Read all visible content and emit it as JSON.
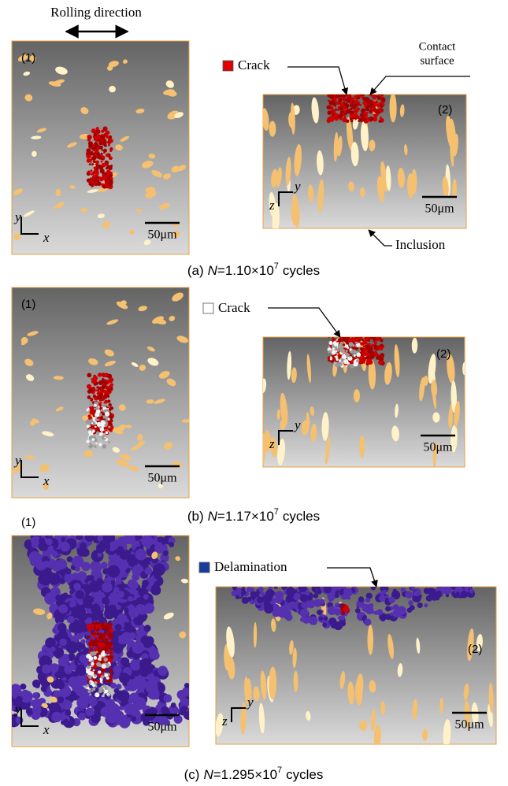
{
  "rolling_direction": "Rolling direction",
  "panels": [
    {
      "caption": {
        "label": "(a)",
        "variable": "N",
        "value": "=1.10×10",
        "exponent": "7",
        "unit": "cycles"
      },
      "view1": {
        "label": "(1)",
        "scale_bar": "50μm",
        "axis_vertical": "y",
        "axis_horizontal": "x"
      },
      "view2": {
        "label": "(2)",
        "scale_bar": "50μm",
        "axis_horizontal": "y",
        "axis_vertical": "z"
      },
      "legend": "Crack",
      "contact_surface": [
        "Contact",
        "surface"
      ],
      "inclusion": "Inclusion"
    },
    {
      "caption": {
        "label": "(b)",
        "variable": "N",
        "value": "=1.17×10",
        "exponent": "7",
        "unit": "cycles"
      },
      "view1": {
        "label": "(1)",
        "scale_bar": "50μm",
        "axis_vertical": "y",
        "axis_horizontal": "x"
      },
      "view2": {
        "label": "(2)",
        "scale_bar": "50μm",
        "axis_horizontal": "y",
        "axis_vertical": "z"
      },
      "legend": "Crack"
    },
    {
      "caption": {
        "label": "(c)",
        "variable": "N",
        "value": "=1.295×10",
        "exponent": "7",
        "unit": "cycles"
      },
      "view1": {
        "label": "(1)",
        "scale_bar": "50μm",
        "axis_vertical": "y",
        "axis_horizontal": "x"
      },
      "view2": {
        "label": "(2)",
        "scale_bar": "50μm",
        "axis_horizontal": "y",
        "axis_vertical": "z"
      },
      "legend": "Delamination"
    }
  ]
}
